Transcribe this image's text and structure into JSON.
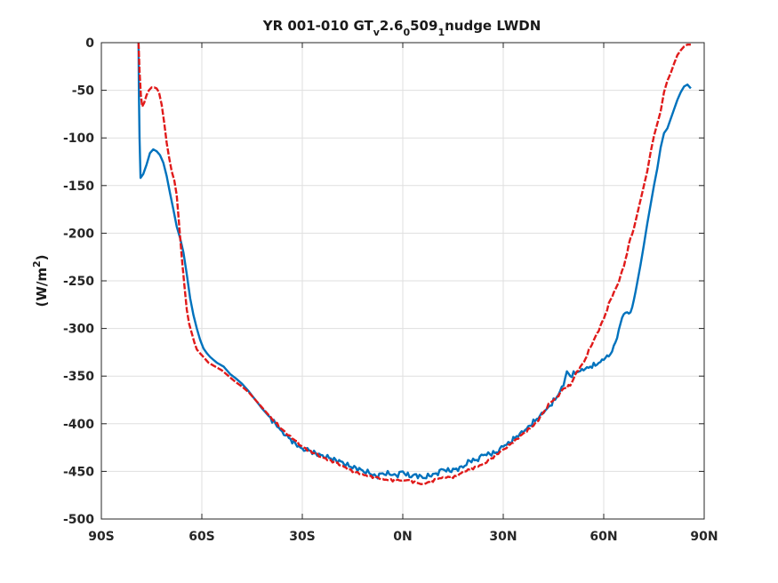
{
  "chart_data": {
    "type": "line",
    "title": {
      "a": "YR 001-010 GT",
      "b": "v",
      "c": "2.6",
      "d": "0",
      "e": "509",
      "f": "1",
      "g": "nudge LWDN"
    },
    "ylabel": {
      "a": "(W/m",
      "b": "2",
      "c": ")"
    },
    "xlabel": "",
    "xlim": [
      -90,
      90
    ],
    "ylim": [
      -500,
      0
    ],
    "grid": true,
    "x_ticks": [
      -90,
      -60,
      -30,
      0,
      30,
      60,
      90
    ],
    "x_tick_labels": [
      "90S",
      "60S",
      "30S",
      "0N",
      "30N",
      "60N",
      "90N"
    ],
    "y_ticks": [
      0,
      -50,
      -100,
      -150,
      -200,
      -250,
      -300,
      -350,
      -400,
      -450,
      -500
    ],
    "y_tick_labels": [
      "0",
      "-50",
      "-100",
      "-150",
      "-200",
      "-250",
      "-300",
      "-350",
      "-400",
      "-450",
      "-500"
    ],
    "series": [
      {
        "color": "#0072bd",
        "style": "solid",
        "x": [
          -78.9,
          -78.8,
          -78.6,
          -78.3,
          -77.5,
          -76.5,
          -75.5,
          -74.5,
          -73.5,
          -72.5,
          -71.5,
          -70.5,
          -69.5,
          -68.5,
          -67.5,
          -66.5,
          -65.5,
          -64.5,
          -63.5,
          -62.5,
          -61.5,
          -60.5,
          -59.5,
          -58.5,
          -57.5,
          -56.5,
          -55.5,
          -54.5,
          -53.5,
          -52.5,
          -51.5,
          -50,
          -48,
          -46,
          -44,
          -42,
          -40,
          -38,
          -36,
          -34,
          -32,
          -30,
          -28,
          -26,
          -24,
          -22,
          -20,
          -18,
          -16,
          -14,
          -12,
          -10,
          -8,
          -6,
          -4,
          -2,
          0,
          2,
          4,
          6,
          8,
          10,
          12,
          14,
          16,
          18,
          20,
          22,
          24,
          26,
          28,
          30,
          32,
          34,
          36,
          38,
          40,
          42,
          44,
          46,
          48,
          49,
          50,
          52,
          54,
          56,
          58,
          60,
          62,
          63,
          64,
          65,
          66,
          67,
          68,
          69,
          70,
          71,
          72,
          73,
          74,
          75,
          76,
          77,
          78,
          79,
          80,
          81,
          82,
          83,
          84,
          85,
          86
        ],
        "y": [
          0,
          -50,
          -100,
          -142,
          -138,
          -128,
          -116,
          -112,
          -114,
          -118,
          -126,
          -140,
          -158,
          -175,
          -193,
          -205,
          -220,
          -243,
          -268,
          -286,
          -300,
          -312,
          -321,
          -326,
          -330,
          -333,
          -336,
          -338,
          -340,
          -344,
          -348,
          -352,
          -358,
          -366,
          -375,
          -384,
          -392,
          -400,
          -408,
          -415,
          -421,
          -426,
          -428,
          -431,
          -433,
          -436,
          -438,
          -440,
          -445,
          -446,
          -449,
          -452,
          -455,
          -452,
          -453,
          -454,
          -450,
          -456,
          -453,
          -457,
          -455,
          -452,
          -448,
          -450,
          -447,
          -446,
          -439,
          -438,
          -433,
          -432,
          -430,
          -424,
          -420,
          -413,
          -409,
          -402,
          -395,
          -389,
          -381,
          -372,
          -360,
          -345,
          -350,
          -346,
          -344,
          -340,
          -338,
          -333,
          -327,
          -318,
          -310,
          -295,
          -285,
          -283,
          -283,
          -270,
          -252,
          -233,
          -212,
          -190,
          -170,
          -150,
          -132,
          -110,
          -95,
          -90,
          -80,
          -70,
          -60,
          -52,
          -46,
          -44,
          -48
        ]
      },
      {
        "color": "#e01a1a",
        "style": "dashed",
        "x": [
          -78.9,
          -78.6,
          -78.2,
          -77.8,
          -77.2,
          -76.5,
          -75.8,
          -75.0,
          -74.2,
          -73.5,
          -72.8,
          -72.0,
          -71.2,
          -70.5,
          -69.8,
          -69.0,
          -68.2,
          -67.5,
          -66.8,
          -66.0,
          -65.2,
          -64.5,
          -63.8,
          -63.0,
          -62.2,
          -61.5,
          -60.8,
          -60.0,
          -59.0,
          -58.0,
          -57.0,
          -56.0,
          -55.0,
          -54.0,
          -53.0,
          -52.0,
          -51.0,
          -50,
          -48,
          -46,
          -44,
          -42,
          -40,
          -38,
          -36,
          -34,
          -32,
          -30,
          -28,
          -26,
          -24,
          -22,
          -20,
          -18,
          -16,
          -14,
          -12,
          -10,
          -8,
          -6,
          -4,
          -2,
          0,
          2,
          4,
          6,
          8,
          10,
          12,
          14,
          16,
          18,
          20,
          22,
          24,
          26,
          28,
          30,
          32,
          34,
          36,
          38,
          40,
          42,
          44,
          46,
          48,
          50,
          52,
          54,
          56,
          58,
          60,
          62,
          64,
          66,
          68,
          69,
          70,
          71,
          72,
          73,
          74,
          75,
          76,
          77,
          78,
          79,
          80,
          81,
          82,
          83,
          84,
          85,
          86
        ],
        "y": [
          0,
          -30,
          -55,
          -67,
          -63,
          -55,
          -50,
          -47,
          -47,
          -48,
          -52,
          -65,
          -85,
          -105,
          -120,
          -135,
          -145,
          -160,
          -190,
          -225,
          -255,
          -280,
          -295,
          -305,
          -315,
          -322,
          -325,
          -328,
          -332,
          -336,
          -338,
          -340,
          -342,
          -344,
          -347,
          -350,
          -353,
          -356,
          -361,
          -367,
          -375,
          -383,
          -391,
          -399,
          -406,
          -412,
          -418,
          -424,
          -428,
          -432,
          -435,
          -438,
          -441,
          -444,
          -448,
          -451,
          -453,
          -455,
          -456,
          -458,
          -459,
          -459,
          -459,
          -459,
          -462,
          -463,
          -461,
          -458,
          -456,
          -456,
          -455,
          -450,
          -448,
          -445,
          -442,
          -438,
          -432,
          -427,
          -422,
          -416,
          -410,
          -405,
          -398,
          -388,
          -378,
          -372,
          -363,
          -360,
          -345,
          -336,
          -320,
          -305,
          -290,
          -270,
          -255,
          -235,
          -205,
          -195,
          -180,
          -165,
          -150,
          -135,
          -115,
          -98,
          -85,
          -72,
          -52,
          -40,
          -32,
          -22,
          -13,
          -8,
          -4,
          -2,
          -2
        ]
      }
    ]
  }
}
